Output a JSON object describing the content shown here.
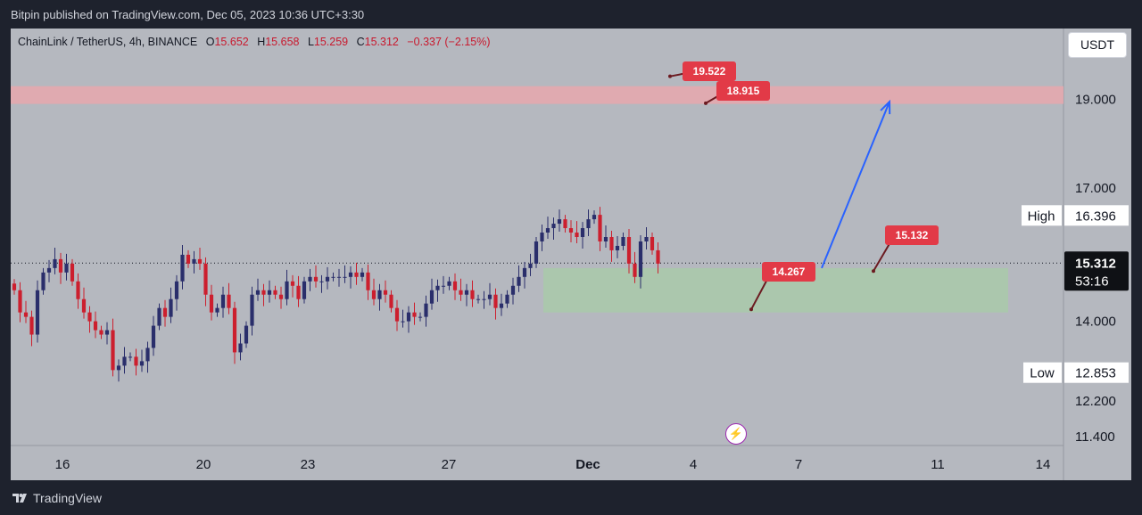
{
  "header": {
    "published_text": "Bitpin published on TradingView.com, Dec 05, 2023 10:36 UTC+3:30"
  },
  "legend": {
    "symbol": "ChainLink / TetherUS, 4h, BINANCE",
    "o_label": "O",
    "open": "15.652",
    "h_label": "H",
    "high": "15.658",
    "l_label": "L",
    "low": "15.259",
    "c_label": "C",
    "close": "15.312",
    "change": "−0.337 (−2.15%)"
  },
  "currency": "USDT",
  "footer": {
    "brand": "TradingView"
  },
  "colors": {
    "up": "#2a2e6b",
    "down": "#cc1f2e",
    "resistance_zone": "#e8a7ad",
    "support_zone": "#a9c9a9",
    "arrow": "#2962ff",
    "label": "#e23a47",
    "background": "#b5b8bf"
  },
  "icons": {
    "snapshot": "lightning-bolt-icon",
    "logo": "tradingview-logo-icon"
  },
  "chart_data": {
    "type": "candlestick",
    "symbol": "LINKUSDT",
    "timeframe": "4h",
    "ylim": [
      11.2,
      20.6
    ],
    "y_ticks": [
      "19.000",
      "17.000",
      "14.000",
      "12.200",
      "11.400"
    ],
    "x_ticks": [
      "16",
      "20",
      "23",
      "27",
      "Dec",
      "4",
      "7",
      "11",
      "14"
    ],
    "last_price": "15.312",
    "countdown": "53:16",
    "high_label": "High",
    "high_value": "16.396",
    "low_label": "Low",
    "low_value": "12.853",
    "zones": [
      {
        "type": "resistance",
        "from": 18.9,
        "to": 19.3
      },
      {
        "type": "support",
        "from": 14.2,
        "to": 15.2
      }
    ],
    "annotations": [
      "19.522",
      "18.915",
      "15.132",
      "14.267"
    ],
    "closes": [
      14.7,
      14.2,
      14.1,
      13.7,
      14.7,
      15.1,
      15.2,
      15.4,
      15.1,
      15.3,
      14.9,
      14.5,
      14.2,
      14.0,
      13.8,
      13.7,
      13.8,
      12.9,
      13.0,
      13.2,
      13.2,
      13.0,
      13.1,
      13.4,
      13.9,
      14.3,
      14.1,
      14.5,
      14.9,
      15.5,
      15.3,
      15.4,
      15.3,
      14.6,
      14.2,
      14.3,
      14.6,
      14.3,
      13.3,
      13.5,
      13.9,
      14.6,
      14.7,
      14.6,
      14.7,
      14.6,
      14.5,
      14.9,
      14.8,
      14.5,
      14.9,
      15.0,
      14.9,
      14.9,
      15.0,
      15.0,
      15.0,
      15.0,
      15.1,
      15.0,
      15.1,
      14.7,
      14.5,
      14.7,
      14.6,
      14.3,
      14.0,
      14.0,
      14.2,
      14.1,
      14.1,
      14.4,
      14.7,
      14.8,
      14.8,
      14.9,
      14.7,
      14.6,
      14.7,
      14.5,
      14.5,
      14.5,
      14.6,
      14.3,
      14.4,
      14.6,
      14.8,
      15.0,
      15.2,
      15.3,
      15.8,
      16.0,
      16.1,
      16.2,
      16.3,
      16.1,
      16.0,
      15.9,
      16.1,
      16.3,
      16.4,
      15.8,
      15.9,
      15.6,
      15.7,
      15.9,
      15.3,
      15.0,
      15.8,
      15.9,
      15.6,
      15.3
    ]
  }
}
